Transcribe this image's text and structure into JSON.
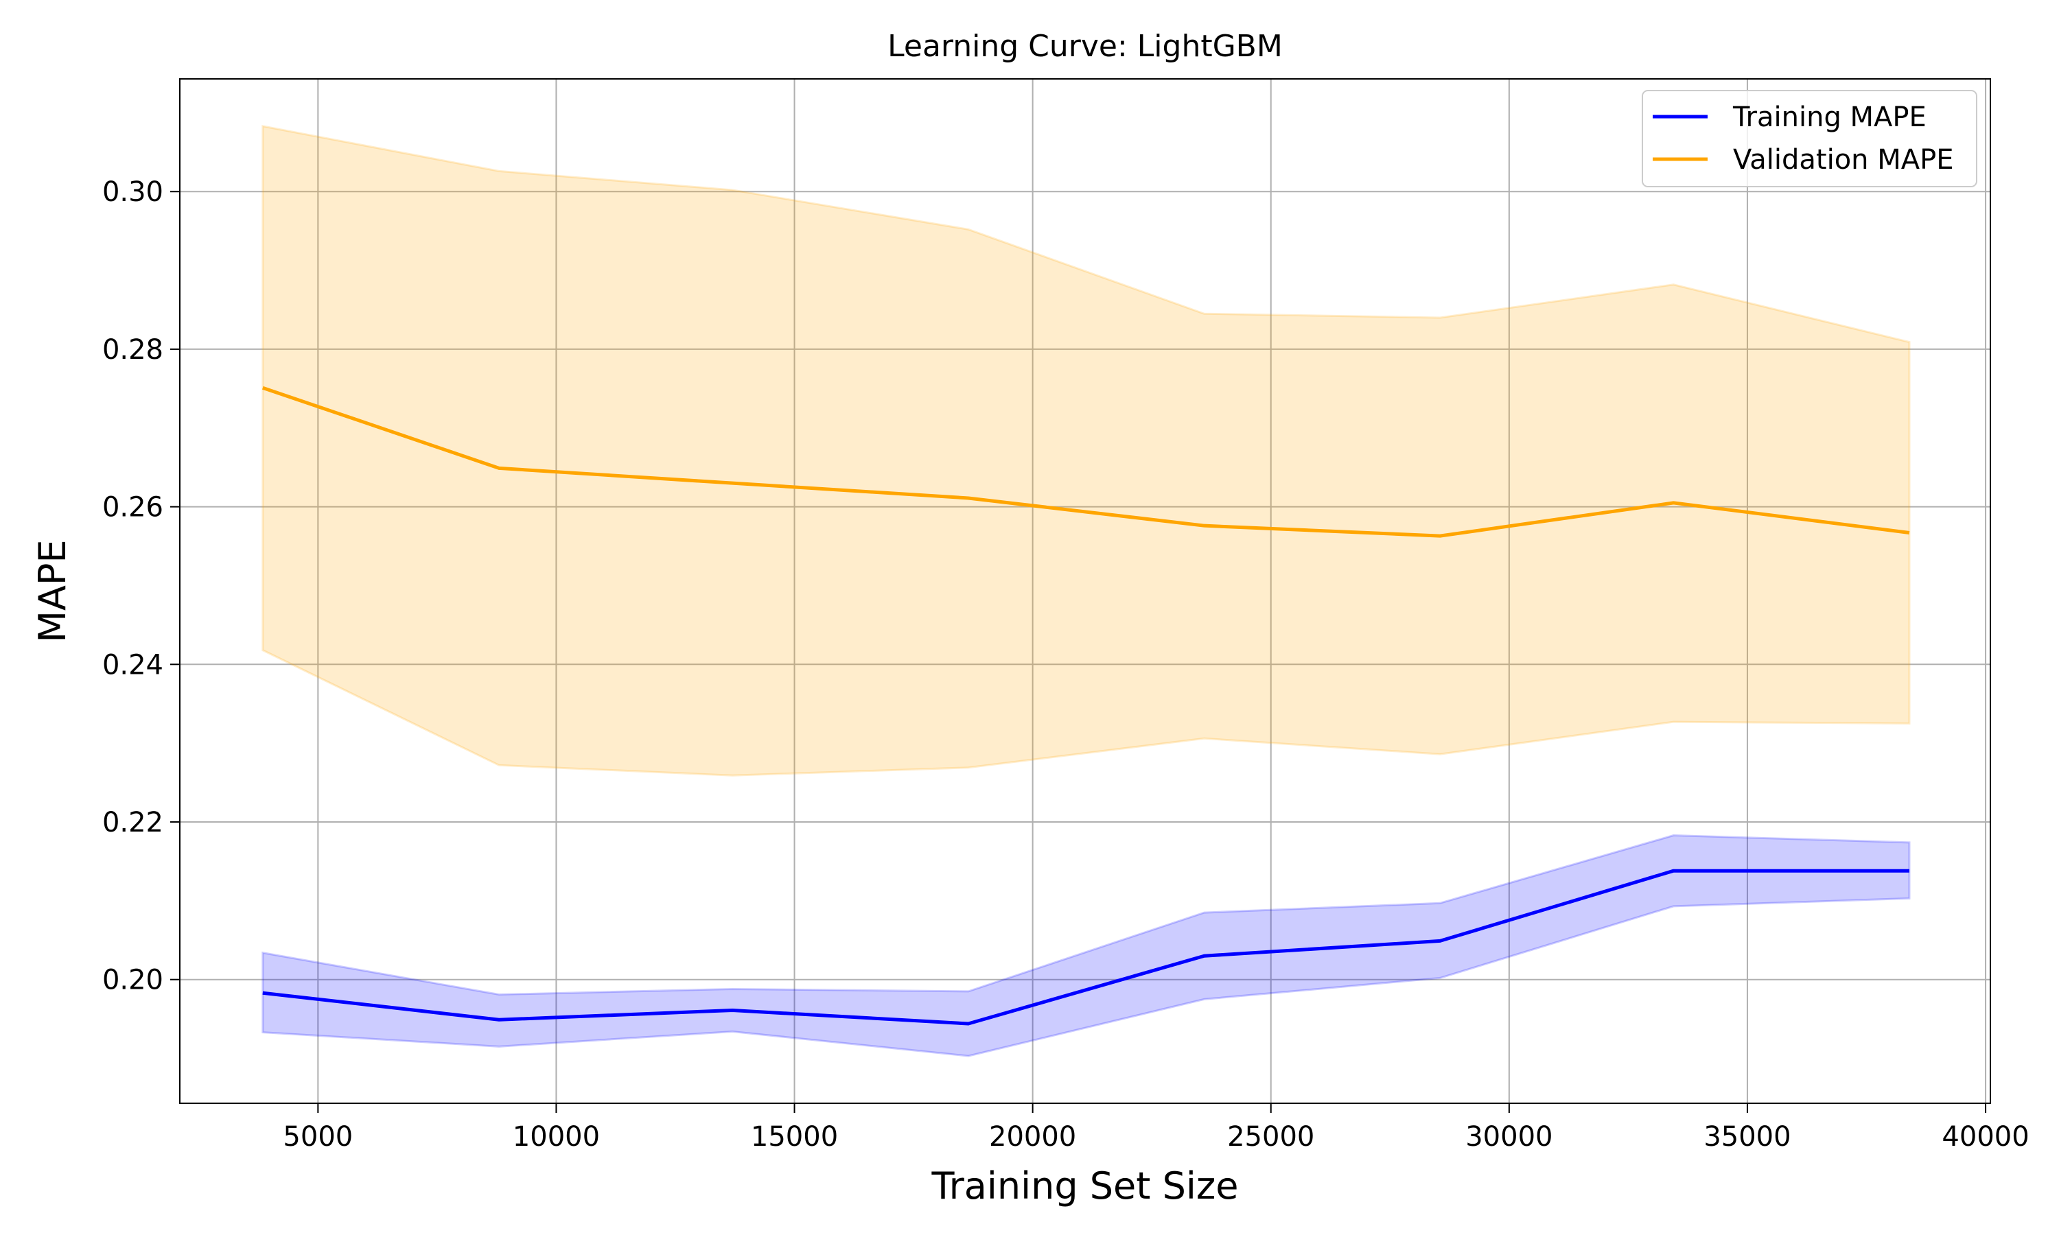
{
  "chart_data": {
    "type": "line",
    "title": "Learning Curve: LightGBM",
    "xlabel": "Training Set Size",
    "ylabel": "MAPE",
    "xlim": [
      2100,
      40100
    ],
    "ylim": [
      0.1843,
      0.3143
    ],
    "xticks": [
      5000,
      10000,
      15000,
      20000,
      25000,
      30000,
      35000,
      40000
    ],
    "xtick_labels": [
      "5000",
      "10000",
      "15000",
      "20000",
      "25000",
      "30000",
      "35000",
      "40000"
    ],
    "yticks": [
      0.2,
      0.22,
      0.24,
      0.26,
      0.28,
      0.3
    ],
    "ytick_labels": [
      "0.20",
      "0.22",
      "0.24",
      "0.26",
      "0.28",
      "0.30"
    ],
    "grid": true,
    "legend_position": "top-right",
    "x": [
      3840,
      8800,
      13700,
      18650,
      23600,
      28550,
      33450,
      38400
    ],
    "series": [
      {
        "name": "Training MAPE",
        "color": "#0000ff",
        "band_color": "#0000ff",
        "values": [
          0.1983,
          0.1949,
          0.1961,
          0.1944,
          0.203,
          0.2049,
          0.2138,
          0.2138
        ],
        "lower": [
          0.1933,
          0.1915,
          0.1934,
          0.1903,
          0.1975,
          0.2002,
          0.2093,
          0.2103
        ],
        "upper": [
          0.2034,
          0.1981,
          0.1988,
          0.1985,
          0.2085,
          0.2097,
          0.2183,
          0.2174
        ]
      },
      {
        "name": "Validation MAPE",
        "color": "#ffa500",
        "band_color": "#ffa500",
        "values": [
          0.2751,
          0.2649,
          0.263,
          0.2611,
          0.2576,
          0.2563,
          0.2605,
          0.2567
        ],
        "lower": [
          0.2418,
          0.2272,
          0.2259,
          0.2269,
          0.2306,
          0.2286,
          0.2327,
          0.2325
        ],
        "upper": [
          0.3083,
          0.3026,
          0.3002,
          0.2952,
          0.2845,
          0.284,
          0.2882,
          0.2809
        ]
      }
    ]
  }
}
